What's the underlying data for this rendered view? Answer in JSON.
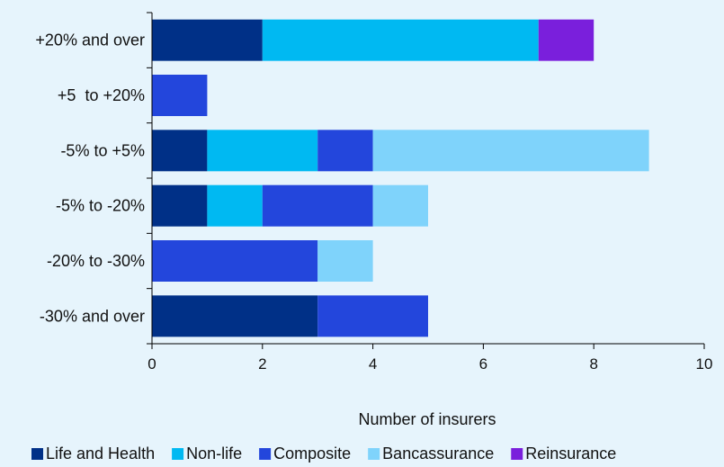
{
  "chart_data": {
    "type": "bar",
    "orientation": "horizontal",
    "stacked": true,
    "categories": [
      "+20% and over",
      "+5  to +20%",
      "-5% to +5%",
      "-5% to -20%",
      "-20% to -30%",
      "-30% and over"
    ],
    "series": [
      {
        "name": "Life and Health",
        "color": "#003087",
        "values": [
          2,
          0,
          1,
          1,
          0,
          3
        ]
      },
      {
        "name": "Non-life",
        "color": "#00b9f2",
        "values": [
          5,
          0,
          2,
          1,
          0,
          0
        ]
      },
      {
        "name": "Composite",
        "color": "#2346dc",
        "values": [
          0,
          1,
          1,
          2,
          3,
          2
        ]
      },
      {
        "name": "Bancassurance",
        "color": "#7fd3fb",
        "values": [
          0,
          0,
          5,
          1,
          1,
          0
        ]
      },
      {
        "name": "Reinsurance",
        "color": "#7a1fdc",
        "values": [
          1,
          0,
          0,
          0,
          0,
          0
        ]
      }
    ],
    "xlabel": "Number of insurers",
    "xlim": [
      0,
      10
    ],
    "xticks": [
      "0",
      "2",
      "4",
      "6",
      "8",
      "10"
    ],
    "grid": false,
    "legend": "bottom"
  }
}
